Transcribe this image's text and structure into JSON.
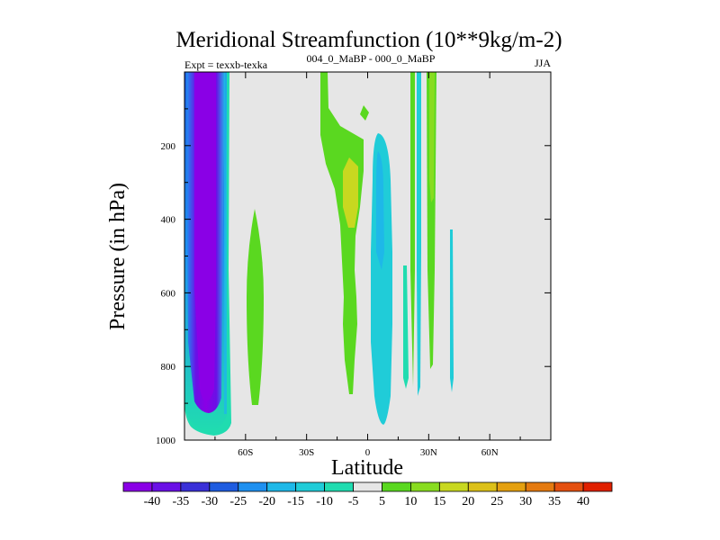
{
  "chart_data": {
    "type": "contour",
    "title": "Meridional Streamfunction (10**9kg/m-2)",
    "subtitle_left": "Expt = texxb-texka",
    "subtitle_center": "004_0_MaBP - 000_0_MaBP",
    "subtitle_right": "JJA",
    "xlabel": "Latitude",
    "ylabel": "Pressure (in hPa)",
    "xlim": [
      -90,
      90
    ],
    "ylim": [
      0,
      1000
    ],
    "y_inverted": true,
    "xticks": [
      {
        "value": -60,
        "label": "60S"
      },
      {
        "value": -30,
        "label": "30S"
      },
      {
        "value": 0,
        "label": "0"
      },
      {
        "value": 30,
        "label": "30N"
      },
      {
        "value": 60,
        "label": "60N"
      }
    ],
    "yticks": [
      {
        "value": 200,
        "label": "200"
      },
      {
        "value": 400,
        "label": "400"
      },
      {
        "value": 600,
        "label": "600"
      },
      {
        "value": 800,
        "label": "800"
      },
      {
        "value": 1000,
        "label": "1000"
      }
    ],
    "background_color": "#e6e6e6",
    "colorbar": {
      "levels": [
        "-40",
        "-35",
        "-30",
        "-25",
        "-20",
        "-15",
        "-10",
        "-5",
        "5",
        "10",
        "15",
        "20",
        "25",
        "30",
        "35",
        "40"
      ],
      "colors": [
        "#8a00e6",
        "#6a10e6",
        "#3a30d8",
        "#1e5ce0",
        "#1e90f0",
        "#1eb8e8",
        "#20ccd8",
        "#20dcb0",
        "#e6e6e6",
        "#5ad820",
        "#88dc20",
        "#c8d820",
        "#dcc018",
        "#e4a010",
        "#e47a10",
        "#e45010",
        "#e02000"
      ]
    },
    "features": [
      {
        "name": "southern-negative-cell",
        "sign": "negative",
        "lat_range": [
          -80,
          -66
        ],
        "pressure_range": [
          0,
          990
        ],
        "min_value": -40
      },
      {
        "name": "southern-midlat-positive-cell",
        "sign": "positive",
        "lat_range": [
          -68,
          -61
        ],
        "pressure_range": [
          380,
          900
        ],
        "max_value": 10
      },
      {
        "name": "tropical-upper-positive-cell",
        "sign": "positive",
        "lat_range": [
          -15,
          0
        ],
        "pressure_range": [
          0,
          880
        ],
        "max_value": 15
      },
      {
        "name": "equatorial-negative-cell",
        "sign": "negative",
        "lat_range": [
          2,
          12
        ],
        "pressure_range": [
          150,
          940
        ],
        "min_value": -10
      },
      {
        "name": "northern-narrow-cells",
        "sign": "mixed",
        "lat_range": [
          18,
          42
        ],
        "pressure_range": [
          0,
          900
        ],
        "max_value": 15
      }
    ]
  }
}
